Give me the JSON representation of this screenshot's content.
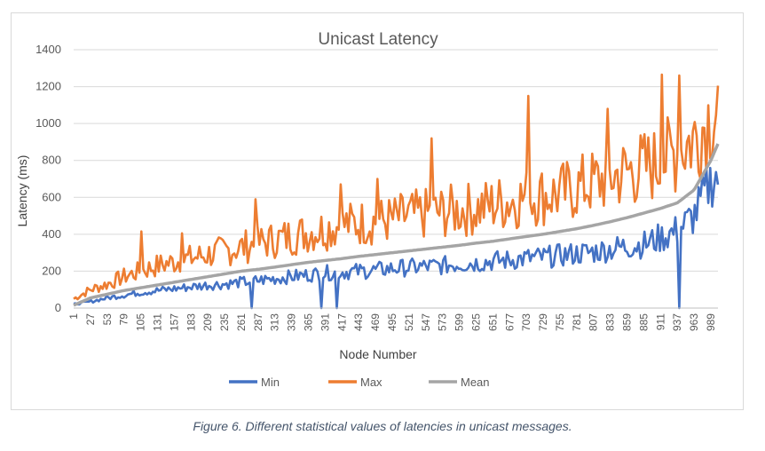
{
  "chart_data": {
    "type": "line",
    "title": "Unicast Latency",
    "xlabel": "Node Number",
    "ylabel": "Latency (ms)",
    "ylim": [
      0,
      1400
    ],
    "yticks": [
      0,
      200,
      400,
      600,
      800,
      1000,
      1200,
      1400
    ],
    "xlim": [
      1,
      1000
    ],
    "xtick_labels": [
      "1",
      "27",
      "53",
      "79",
      "105",
      "131",
      "157",
      "183",
      "209",
      "235",
      "261",
      "287",
      "313",
      "339",
      "365",
      "391",
      "417",
      "443",
      "469",
      "495",
      "521",
      "547",
      "573",
      "599",
      "625",
      "651",
      "677",
      "703",
      "729",
      "755",
      "781",
      "807",
      "833",
      "859",
      "885",
      "911",
      "937",
      "963",
      "989"
    ],
    "grid": "horizontal",
    "legend_position": "bottom",
    "x": [
      1,
      27,
      53,
      79,
      105,
      131,
      157,
      183,
      209,
      235,
      261,
      287,
      313,
      339,
      365,
      391,
      417,
      443,
      469,
      495,
      521,
      547,
      573,
      599,
      625,
      651,
      677,
      703,
      729,
      755,
      781,
      807,
      833,
      859,
      885,
      911,
      937,
      963,
      989,
      1000
    ],
    "series": [
      {
        "name": "Min",
        "color": "#4472c4",
        "values": [
          20,
          35,
          55,
          70,
          85,
          95,
          105,
          115,
          125,
          130,
          140,
          150,
          160,
          170,
          180,
          190,
          195,
          200,
          205,
          215,
          220,
          225,
          230,
          240,
          245,
          255,
          260,
          270,
          275,
          285,
          295,
          305,
          320,
          335,
          345,
          380,
          420,
          500,
          690,
          720
        ]
      },
      {
        "name": "Max",
        "color": "#ed7d31",
        "values": [
          50,
          100,
          130,
          170,
          200,
          230,
          250,
          270,
          290,
          310,
          330,
          350,
          370,
          390,
          410,
          430,
          450,
          460,
          470,
          480,
          500,
          510,
          520,
          530,
          540,
          560,
          580,
          600,
          610,
          620,
          650,
          680,
          710,
          740,
          760,
          790,
          850,
          920,
          1050,
          1100
        ]
      },
      {
        "name": "Mean",
        "color": "#a5a5a5",
        "values": [
          15,
          55,
          75,
          95,
          110,
          125,
          140,
          155,
          170,
          185,
          200,
          210,
          222,
          235,
          248,
          258,
          268,
          280,
          290,
          300,
          310,
          320,
          330,
          340,
          352,
          362,
          375,
          388,
          400,
          415,
          430,
          448,
          468,
          490,
          515,
          540,
          570,
          640,
          800,
          890
        ]
      }
    ],
    "spikes": [
      {
        "series": "Max",
        "x": 105,
        "y": 415
      },
      {
        "series": "Max",
        "x": 170,
        "y": 405
      },
      {
        "series": "Max",
        "x": 283,
        "y": 590
      },
      {
        "series": "Max",
        "x": 415,
        "y": 670
      },
      {
        "series": "Max",
        "x": 472,
        "y": 700
      },
      {
        "series": "Max",
        "x": 555,
        "y": 920
      },
      {
        "series": "Max",
        "x": 706,
        "y": 1150
      },
      {
        "series": "Max",
        "x": 828,
        "y": 1080
      },
      {
        "series": "Max",
        "x": 913,
        "y": 1265
      },
      {
        "series": "Max",
        "x": 940,
        "y": 1260
      },
      {
        "series": "Min",
        "x": 278,
        "y": 0
      },
      {
        "series": "Min",
        "x": 386,
        "y": 0
      },
      {
        "series": "Min",
        "x": 409,
        "y": 0
      },
      {
        "series": "Min",
        "x": 939,
        "y": 0
      }
    ]
  },
  "caption": "Figure 6. Different statistical values of latencies in unicast messages."
}
